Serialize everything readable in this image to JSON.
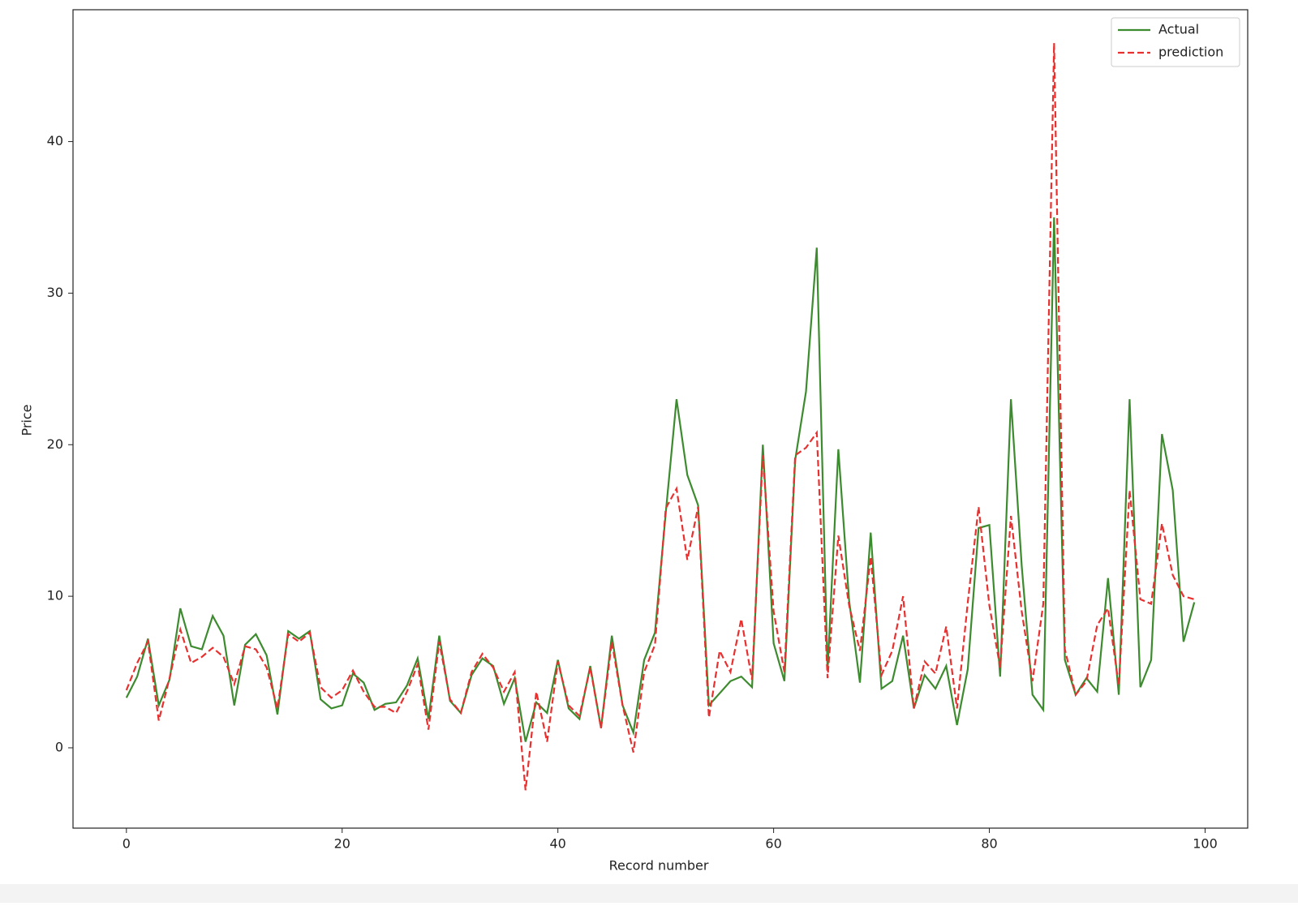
{
  "chart_data": {
    "type": "line",
    "x_label": "Record number",
    "y_label": "Price",
    "x": [
      0,
      1,
      2,
      3,
      4,
      5,
      6,
      7,
      8,
      9,
      10,
      11,
      12,
      13,
      14,
      15,
      16,
      17,
      18,
      19,
      20,
      21,
      22,
      23,
      24,
      25,
      26,
      27,
      28,
      29,
      30,
      31,
      32,
      33,
      34,
      35,
      36,
      37,
      38,
      39,
      40,
      41,
      42,
      43,
      44,
      45,
      46,
      47,
      48,
      49,
      50,
      51,
      52,
      53,
      54,
      55,
      56,
      57,
      58,
      59,
      60,
      61,
      62,
      63,
      64,
      65,
      66,
      67,
      68,
      69,
      70,
      71,
      72,
      73,
      74,
      75,
      76,
      77,
      78,
      79,
      80,
      81,
      82,
      83,
      84,
      85,
      86,
      87,
      88,
      89,
      90,
      91,
      92,
      93,
      94,
      95,
      96,
      97,
      98,
      99
    ],
    "series": [
      {
        "name": "Actual",
        "color": "#3d8b2f",
        "dash": false,
        "values": [
          3.3,
          4.7,
          7.2,
          2.8,
          4.5,
          9.2,
          6.7,
          6.5,
          8.7,
          7.4,
          2.8,
          6.8,
          7.5,
          6.1,
          2.2,
          7.7,
          7.2,
          7.7,
          3.2,
          2.6,
          2.8,
          4.9,
          4.3,
          2.5,
          2.9,
          3.0,
          4.1,
          5.9,
          1.9,
          7.4,
          3.1,
          2.3,
          4.8,
          5.9,
          5.4,
          2.9,
          4.6,
          0.4,
          3.0,
          2.3,
          5.8,
          2.6,
          1.9,
          5.4,
          1.3,
          7.4,
          2.8,
          1.0,
          5.8,
          7.6,
          15.5,
          23.0,
          18.0,
          16.0,
          2.8,
          3.6,
          4.4,
          4.7,
          4.0,
          20.0,
          6.9,
          4.4,
          19.0,
          23.5,
          33.0,
          5.1,
          19.7,
          9.7,
          4.3,
          14.2,
          3.9,
          4.4,
          7.4,
          2.6,
          4.8,
          3.9,
          5.4,
          1.5,
          5.2,
          14.5,
          14.7,
          4.7,
          23.0,
          12.0,
          3.5,
          2.5,
          35.0,
          5.8,
          3.5,
          4.6,
          3.7,
          11.2,
          3.5,
          23.0,
          4.0,
          5.8,
          20.7,
          17.0,
          7.0,
          9.6
        ]
      },
      {
        "name": "prediction",
        "color": "#e8302f",
        "dash": true,
        "values": [
          3.8,
          5.6,
          7.0,
          1.8,
          4.6,
          7.8,
          5.6,
          6.0,
          6.6,
          6.0,
          4.2,
          6.7,
          6.5,
          5.3,
          2.6,
          7.5,
          7.0,
          7.6,
          4.0,
          3.3,
          3.8,
          5.1,
          3.7,
          2.7,
          2.7,
          2.3,
          3.7,
          5.5,
          1.2,
          7.0,
          3.2,
          2.3,
          5.0,
          6.2,
          5.3,
          3.7,
          5.0,
          -2.8,
          3.7,
          0.4,
          5.7,
          2.8,
          2.1,
          5.3,
          1.3,
          7.0,
          2.8,
          -0.3,
          5.0,
          6.8,
          15.8,
          17.1,
          12.4,
          15.9,
          2.0,
          6.4,
          5.0,
          8.5,
          4.5,
          19.3,
          9.0,
          5.0,
          19.3,
          19.8,
          20.8,
          4.6,
          14.0,
          9.4,
          6.4,
          12.6,
          4.8,
          6.4,
          10.0,
          2.6,
          5.7,
          4.9,
          8.0,
          2.6,
          9.6,
          15.9,
          9.4,
          5.3,
          15.3,
          9.0,
          4.4,
          9.5,
          46.5,
          6.5,
          3.5,
          4.4,
          8.1,
          9.2,
          4.1,
          17.0,
          9.8,
          9.5,
          14.8,
          11.4,
          10.0,
          9.8
        ]
      }
    ],
    "xlim": [
      -4.95,
      103.95
    ],
    "ylim": [
      -5.3,
      48.7
    ],
    "xticks": [
      0,
      20,
      40,
      60,
      80,
      100
    ],
    "yticks": [
      0,
      10,
      20,
      30,
      40
    ],
    "legend_position": "upper right"
  }
}
